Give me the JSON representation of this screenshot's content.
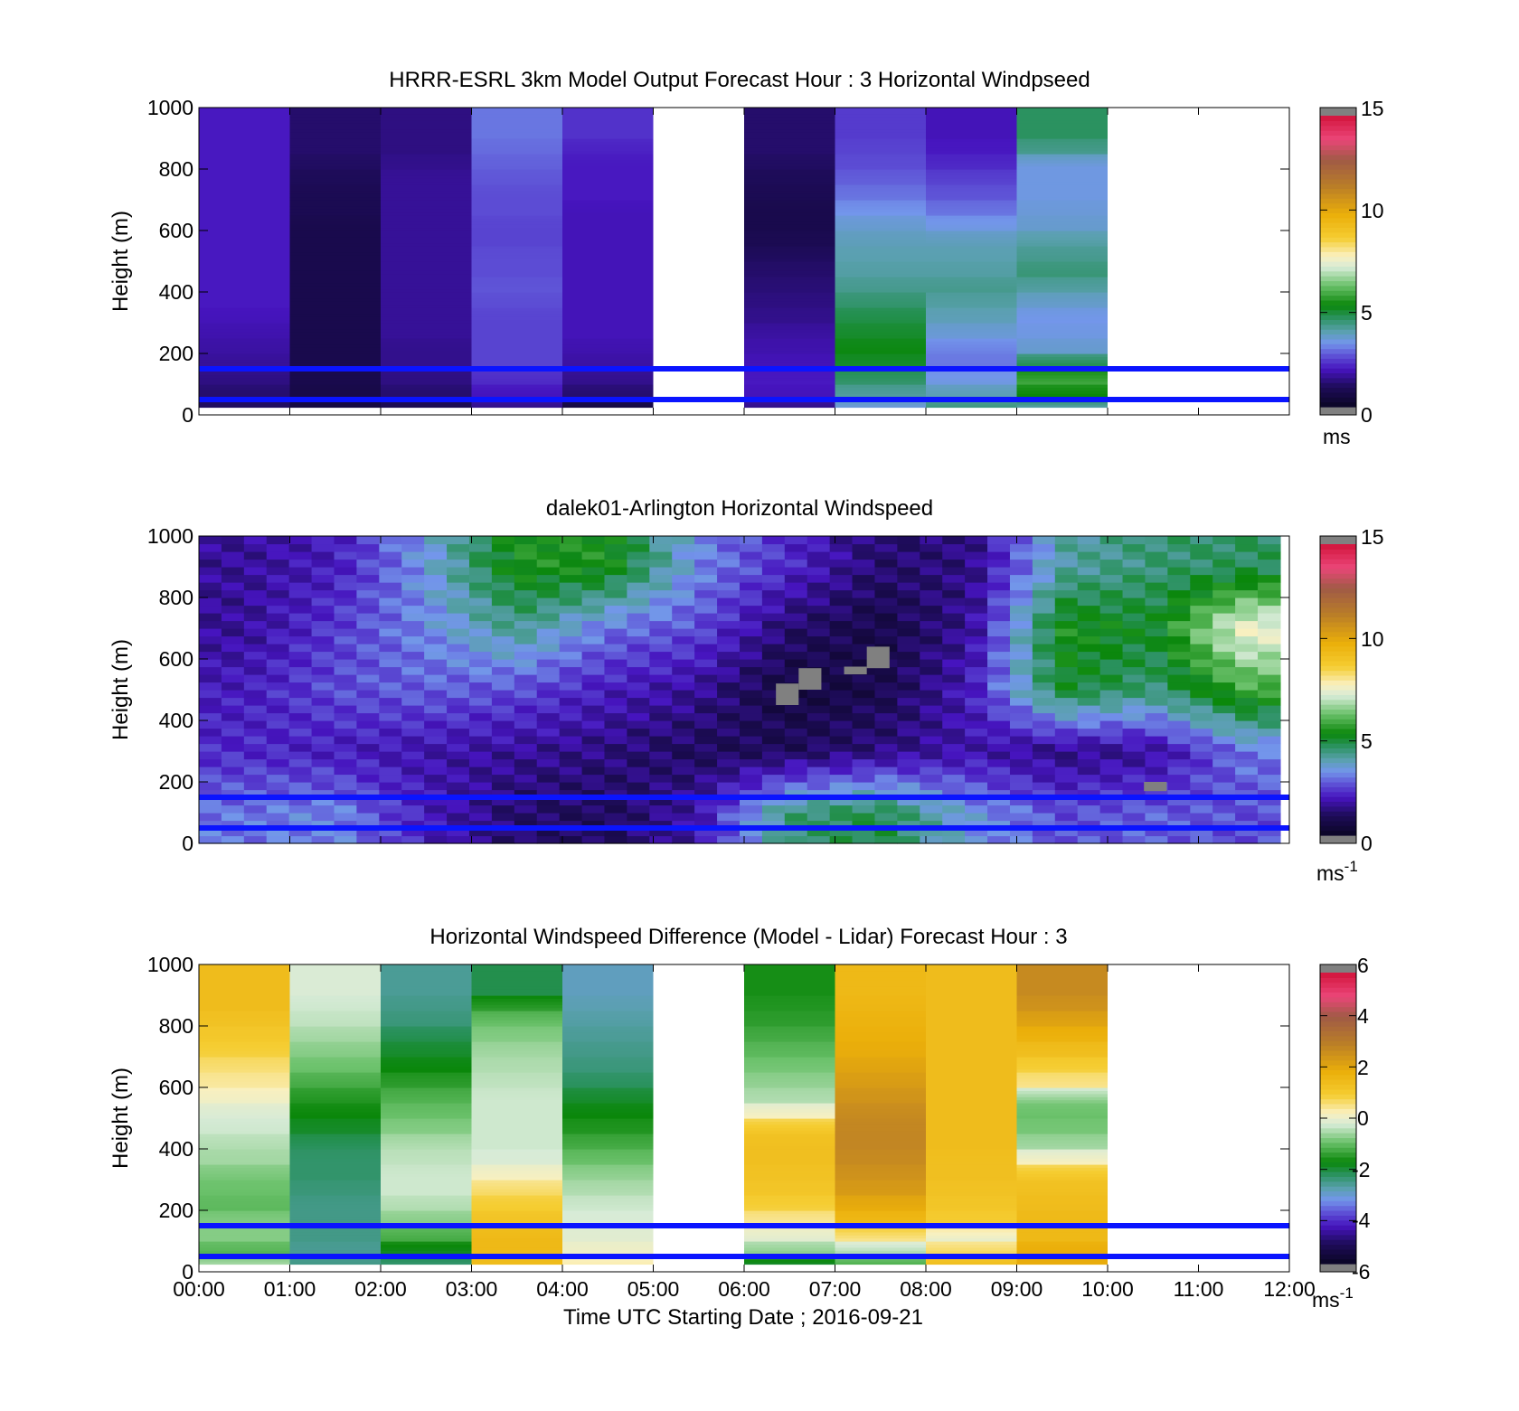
{
  "figure": {
    "xlabel": "Time UTC  Starting Date ; 2016-09-21",
    "x_ticks": [
      "00:00",
      "01:00",
      "02:00",
      "03:00",
      "04:00",
      "05:00",
      "06:00",
      "07:00",
      "08:00",
      "09:00",
      "10:00",
      "11:00",
      "12:00"
    ],
    "y_ticks": [
      "0",
      "200",
      "400",
      "600",
      "800",
      "1000"
    ],
    "reference_heights_m": [
      50,
      150
    ],
    "reference_line_color": "#0a14ff"
  },
  "panels": [
    {
      "title": "HRRR-ESRL 3km Model Output   Forecast Hour : 3 Horizontal Windpseed",
      "ylabel": "Height (m)",
      "colorbar": {
        "ticks": [
          "0",
          "5",
          "10",
          "15"
        ],
        "unit": "ms",
        "unit_sup": "",
        "range": [
          0,
          15
        ]
      },
      "colors": {
        "missing": "#ffffff"
      }
    },
    {
      "title": "dalek01-Arlington  Horizontal Windspeed",
      "ylabel": "Height (m)",
      "colorbar": {
        "ticks": [
          "0",
          "5",
          "10",
          "15"
        ],
        "unit": "ms",
        "unit_sup": "-1",
        "range": [
          0,
          15
        ]
      },
      "colors": {
        "missing": "#ffffff",
        "flagged": "#808080"
      }
    },
    {
      "title": "Horizontal Windspeed Difference (Model - Lidar) Forecast Hour : 3",
      "ylabel": "Height (m)",
      "colorbar": {
        "ticks": [
          "-6",
          "-4",
          "-2",
          "0",
          "2",
          "4",
          "6"
        ],
        "unit": "ms",
        "unit_sup": "-1",
        "range": [
          -6,
          6
        ]
      },
      "colors": {
        "missing": "#ffffff"
      }
    }
  ],
  "chart_data": [
    {
      "type": "heatmap",
      "title": "HRRR-ESRL 3km Model Output   Forecast Hour : 3 Horizontal Windpseed",
      "xlabel": "",
      "ylabel": "Height (m)",
      "xlim": [
        0,
        12
      ],
      "ylim": [
        0,
        1000
      ],
      "x_unit": "hours UTC",
      "colorbar_range": [
        0,
        15
      ],
      "colorbar_unit": "ms",
      "heights_m": [
        50,
        100,
        150,
        200,
        250,
        300,
        350,
        400,
        450,
        500,
        550,
        600,
        650,
        700,
        750,
        800,
        850,
        900,
        950,
        1000
      ],
      "columns": [
        {
          "start": 0,
          "end": 1,
          "values": [
            1.1,
            1.2,
            1.4,
            1.6,
            1.7,
            1.8,
            1.9,
            2.0,
            2.0,
            2.0,
            2.0,
            2.0,
            2.0,
            2.0,
            2.0,
            2.0,
            2.0,
            2.0,
            2.0,
            2.0
          ]
        },
        {
          "start": 1,
          "end": 2,
          "values": [
            0.6,
            0.7,
            0.8,
            0.8,
            0.8,
            0.8,
            0.8,
            0.8,
            0.8,
            0.8,
            0.8,
            0.8,
            0.8,
            0.9,
            0.9,
            1.0,
            1.1,
            1.2,
            1.2,
            1.2
          ]
        },
        {
          "start": 2,
          "end": 3,
          "values": [
            0.9,
            1.2,
            1.4,
            1.5,
            1.5,
            1.6,
            1.6,
            1.6,
            1.6,
            1.6,
            1.6,
            1.6,
            1.6,
            1.6,
            1.6,
            1.6,
            1.5,
            1.4,
            1.4,
            1.4
          ]
        },
        {
          "start": 3,
          "end": 4,
          "values": [
            1.5,
            1.9,
            2.2,
            2.5,
            2.5,
            2.5,
            2.5,
            2.6,
            2.7,
            2.6,
            2.6,
            2.5,
            2.5,
            2.6,
            2.6,
            2.7,
            2.8,
            2.9,
            3.0,
            3.0
          ]
        },
        {
          "start": 4,
          "end": 5,
          "values": [
            0.6,
            1.2,
            1.5,
            1.7,
            1.8,
            1.9,
            1.9,
            1.9,
            1.9,
            1.9,
            1.9,
            1.9,
            1.9,
            1.9,
            2.0,
            2.0,
            2.0,
            2.1,
            2.3,
            2.3
          ]
        },
        {
          "start": 5,
          "end": 6,
          "values": [
            null,
            null,
            null,
            null,
            null,
            null,
            null,
            null,
            null,
            null,
            null,
            null,
            null,
            null,
            null,
            null,
            null,
            null,
            null,
            null
          ]
        },
        {
          "start": 6,
          "end": 7,
          "values": [
            1.5,
            1.9,
            2.0,
            1.9,
            1.8,
            1.7,
            1.5,
            1.4,
            1.3,
            1.2,
            1.1,
            0.9,
            0.8,
            0.8,
            0.9,
            1.0,
            1.1,
            1.2,
            1.2,
            1.2
          ]
        },
        {
          "start": 7,
          "end": 8,
          "values": [
            3.5,
            4.0,
            4.5,
            5.0,
            5.2,
            5.0,
            4.8,
            4.5,
            4.2,
            4.0,
            3.9,
            3.8,
            3.6,
            3.3,
            3.0,
            2.8,
            2.6,
            2.5,
            2.4,
            2.4
          ]
        },
        {
          "start": 8,
          "end": 9,
          "values": [
            4.3,
            3.9,
            3.4,
            3.0,
            3.1,
            3.5,
            3.8,
            4.0,
            4.2,
            4.0,
            3.9,
            3.8,
            3.4,
            3.0,
            2.7,
            2.5,
            2.2,
            2.0,
            1.9,
            1.9
          ]
        },
        {
          "start": 9,
          "end": 10,
          "values": [
            4.0,
            5.2,
            5.8,
            4.8,
            3.6,
            3.4,
            3.3,
            3.6,
            4.0,
            4.4,
            4.2,
            4.0,
            3.6,
            3.5,
            3.4,
            3.4,
            3.4,
            4.2,
            4.6,
            4.6
          ]
        },
        {
          "start": 10,
          "end": 12,
          "values": [
            null,
            null,
            null,
            null,
            null,
            null,
            null,
            null,
            null,
            null,
            null,
            null,
            null,
            null,
            null,
            null,
            null,
            null,
            null,
            null
          ]
        }
      ]
    },
    {
      "type": "heatmap",
      "title": "dalek01-Arlington  Horizontal Windspeed",
      "xlabel": "",
      "ylabel": "Height (m)",
      "xlim": [
        0,
        12
      ],
      "ylim": [
        0,
        1000
      ],
      "x_unit": "hours UTC",
      "data_x_extent": [
        0,
        11.9
      ],
      "colorbar_range": [
        0,
        15
      ],
      "colorbar_unit": "ms-1",
      "approx_profiles_by_hour": [
        {
          "hour": 0.5,
          "heights_m": [
            100,
            300,
            500,
            700,
            900
          ],
          "speed": [
            3.0,
            2.2,
            2.0,
            1.6,
            1.6
          ]
        },
        {
          "hour": 1.5,
          "heights_m": [
            100,
            300,
            500,
            700,
            900
          ],
          "speed": [
            3.2,
            2.0,
            2.6,
            2.4,
            2.0
          ]
        },
        {
          "hour": 2.5,
          "heights_m": [
            100,
            300,
            500,
            700,
            900
          ],
          "speed": [
            2.0,
            1.8,
            2.8,
            3.2,
            3.4
          ]
        },
        {
          "hour": 3.5,
          "heights_m": [
            100,
            300,
            500,
            700,
            900
          ],
          "speed": [
            1.2,
            1.6,
            2.6,
            4.2,
            5.4
          ]
        },
        {
          "hour": 4.5,
          "heights_m": [
            100,
            300,
            500,
            700,
            900
          ],
          "speed": [
            1.0,
            1.4,
            2.0,
            3.0,
            5.4
          ]
        },
        {
          "hour": 5.5,
          "heights_m": [
            100,
            300,
            500,
            700,
            900
          ],
          "speed": [
            1.8,
            1.0,
            1.6,
            2.6,
            3.2
          ]
        },
        {
          "hour": 6.5,
          "heights_m": [
            100,
            300,
            500,
            700,
            900
          ],
          "speed": [
            4.4,
            1.0,
            0.6,
            1.2,
            2.2
          ]
        },
        {
          "hour": 7.5,
          "heights_m": [
            100,
            300,
            500,
            700,
            900
          ],
          "speed": [
            4.8,
            1.4,
            0.8,
            0.7,
            1.2
          ]
        },
        {
          "hour": 8.5,
          "heights_m": [
            100,
            300,
            500,
            700,
            900
          ],
          "speed": [
            3.4,
            1.8,
            2.0,
            1.6,
            1.4
          ]
        },
        {
          "hour": 9.5,
          "heights_m": [
            100,
            300,
            500,
            700,
            900
          ],
          "speed": [
            2.6,
            1.4,
            5.0,
            5.4,
            4.0
          ]
        },
        {
          "hour": 10.5,
          "heights_m": [
            100,
            300,
            500,
            700,
            900
          ],
          "speed": [
            2.8,
            1.6,
            4.4,
            5.0,
            4.4
          ]
        },
        {
          "hour": 11.5,
          "heights_m": [
            100,
            300,
            500,
            700,
            900
          ],
          "speed": [
            2.6,
            3.0,
            5.8,
            7.6,
            4.6
          ]
        }
      ],
      "flagged_cells": [
        {
          "hour_start": 6.35,
          "hour_end": 6.6,
          "height_start_m": 450,
          "height_end_m": 520
        },
        {
          "hour_start": 6.6,
          "hour_end": 6.85,
          "height_start_m": 500,
          "height_end_m": 570
        },
        {
          "hour_start": 7.1,
          "hour_end": 7.35,
          "height_start_m": 550,
          "height_end_m": 575
        },
        {
          "hour_start": 7.35,
          "hour_end": 7.6,
          "height_start_m": 570,
          "height_end_m": 640
        },
        {
          "hour_start": 10.4,
          "hour_end": 10.65,
          "height_start_m": 170,
          "height_end_m": 200
        }
      ]
    },
    {
      "type": "heatmap",
      "title": "Horizontal Windspeed Difference (Model - Lidar) Forecast Hour : 3",
      "xlabel": "Time UTC  Starting Date ; 2016-09-21",
      "ylabel": "Height (m)",
      "xlim": [
        0,
        12
      ],
      "ylim": [
        0,
        1000
      ],
      "x_unit": "hours UTC",
      "colorbar_range": [
        -6,
        6
      ],
      "colorbar_unit": "ms-1",
      "heights_m": [
        50,
        100,
        150,
        200,
        250,
        300,
        350,
        400,
        450,
        500,
        550,
        600,
        650,
        700,
        750,
        800,
        850,
        900,
        950,
        1000
      ],
      "columns": [
        {
          "start": 0,
          "end": 1,
          "values": [
            -0.6,
            -1.2,
            -0.8,
            -0.8,
            -1.1,
            -1.0,
            -0.9,
            -0.6,
            -0.5,
            -0.3,
            -0.2,
            0.1,
            0.4,
            0.6,
            0.9,
            1.1,
            1.3,
            1.5,
            1.5,
            1.5
          ]
        },
        {
          "start": 1,
          "end": 2,
          "values": [
            -2.6,
            -2.7,
            -2.6,
            -2.6,
            -2.6,
            -2.5,
            -2.4,
            -2.4,
            -2.3,
            -2.0,
            -1.8,
            -1.6,
            -1.3,
            -1.0,
            -0.8,
            -0.6,
            -0.4,
            -0.3,
            -0.2,
            -0.2
          ]
        },
        {
          "start": 2,
          "end": 3,
          "values": [
            -2.4,
            -2.0,
            -1.3,
            -0.8,
            -0.5,
            -0.3,
            -0.3,
            -0.4,
            -0.5,
            -0.8,
            -1.0,
            -1.2,
            -1.5,
            -1.8,
            -2.0,
            -2.2,
            -2.5,
            -2.6,
            -2.7,
            -2.7
          ]
        },
        {
          "start": 3,
          "end": 4,
          "values": [
            1.5,
            1.6,
            1.6,
            1.3,
            1.0,
            0.7,
            0.2,
            -0.2,
            -0.3,
            -0.3,
            -0.3,
            -0.3,
            -0.4,
            -0.5,
            -0.6,
            -0.8,
            -1.0,
            -1.5,
            -2.2,
            -2.2
          ]
        },
        {
          "start": 4,
          "end": 5,
          "values": [
            0.3,
            0.1,
            -0.1,
            -0.2,
            -0.3,
            -0.5,
            -0.7,
            -1.0,
            -1.3,
            -1.6,
            -1.8,
            -2.0,
            -2.3,
            -2.5,
            -2.6,
            -2.7,
            -2.8,
            -2.9,
            -3.0,
            -3.0
          ]
        },
        {
          "start": 5,
          "end": 6,
          "values": [
            null,
            null,
            null,
            null,
            null,
            null,
            null,
            null,
            null,
            null,
            null,
            null,
            null,
            null,
            null,
            null,
            null,
            null,
            null,
            null
          ]
        },
        {
          "start": 6,
          "end": 7,
          "values": [
            -2.0,
            -0.8,
            -0.1,
            0.4,
            0.9,
            1.2,
            1.3,
            1.4,
            1.4,
            1.2,
            0.2,
            -0.5,
            -0.7,
            -0.9,
            -1.1,
            -1.3,
            -1.5,
            -1.6,
            -1.7,
            -1.7
          ]
        },
        {
          "start": 7,
          "end": 8,
          "values": [
            -1.2,
            -0.6,
            0.5,
            1.6,
            2.0,
            2.4,
            2.6,
            2.8,
            2.9,
            2.9,
            2.8,
            2.6,
            2.4,
            2.2,
            2.0,
            1.9,
            1.8,
            1.7,
            1.6,
            1.6
          ]
        },
        {
          "start": 8,
          "end": 9,
          "values": [
            1.4,
            0.8,
            0.0,
            1.0,
            1.2,
            1.3,
            1.4,
            1.4,
            1.5,
            1.5,
            1.5,
            1.5,
            1.5,
            1.5,
            1.5,
            1.5,
            1.5,
            1.5,
            1.5,
            1.5
          ]
        },
        {
          "start": 9,
          "end": 10,
          "values": [
            2.0,
            2.0,
            1.6,
            1.6,
            1.5,
            1.4,
            1.2,
            0.2,
            -0.6,
            -0.9,
            -1.0,
            -0.8,
            0.5,
            0.9,
            1.4,
            1.8,
            2.2,
            2.6,
            2.8,
            2.8
          ]
        },
        {
          "start": 10,
          "end": 12,
          "values": [
            null,
            null,
            null,
            null,
            null,
            null,
            null,
            null,
            null,
            null,
            null,
            null,
            null,
            null,
            null,
            null,
            null,
            null,
            null,
            null
          ]
        }
      ]
    }
  ]
}
